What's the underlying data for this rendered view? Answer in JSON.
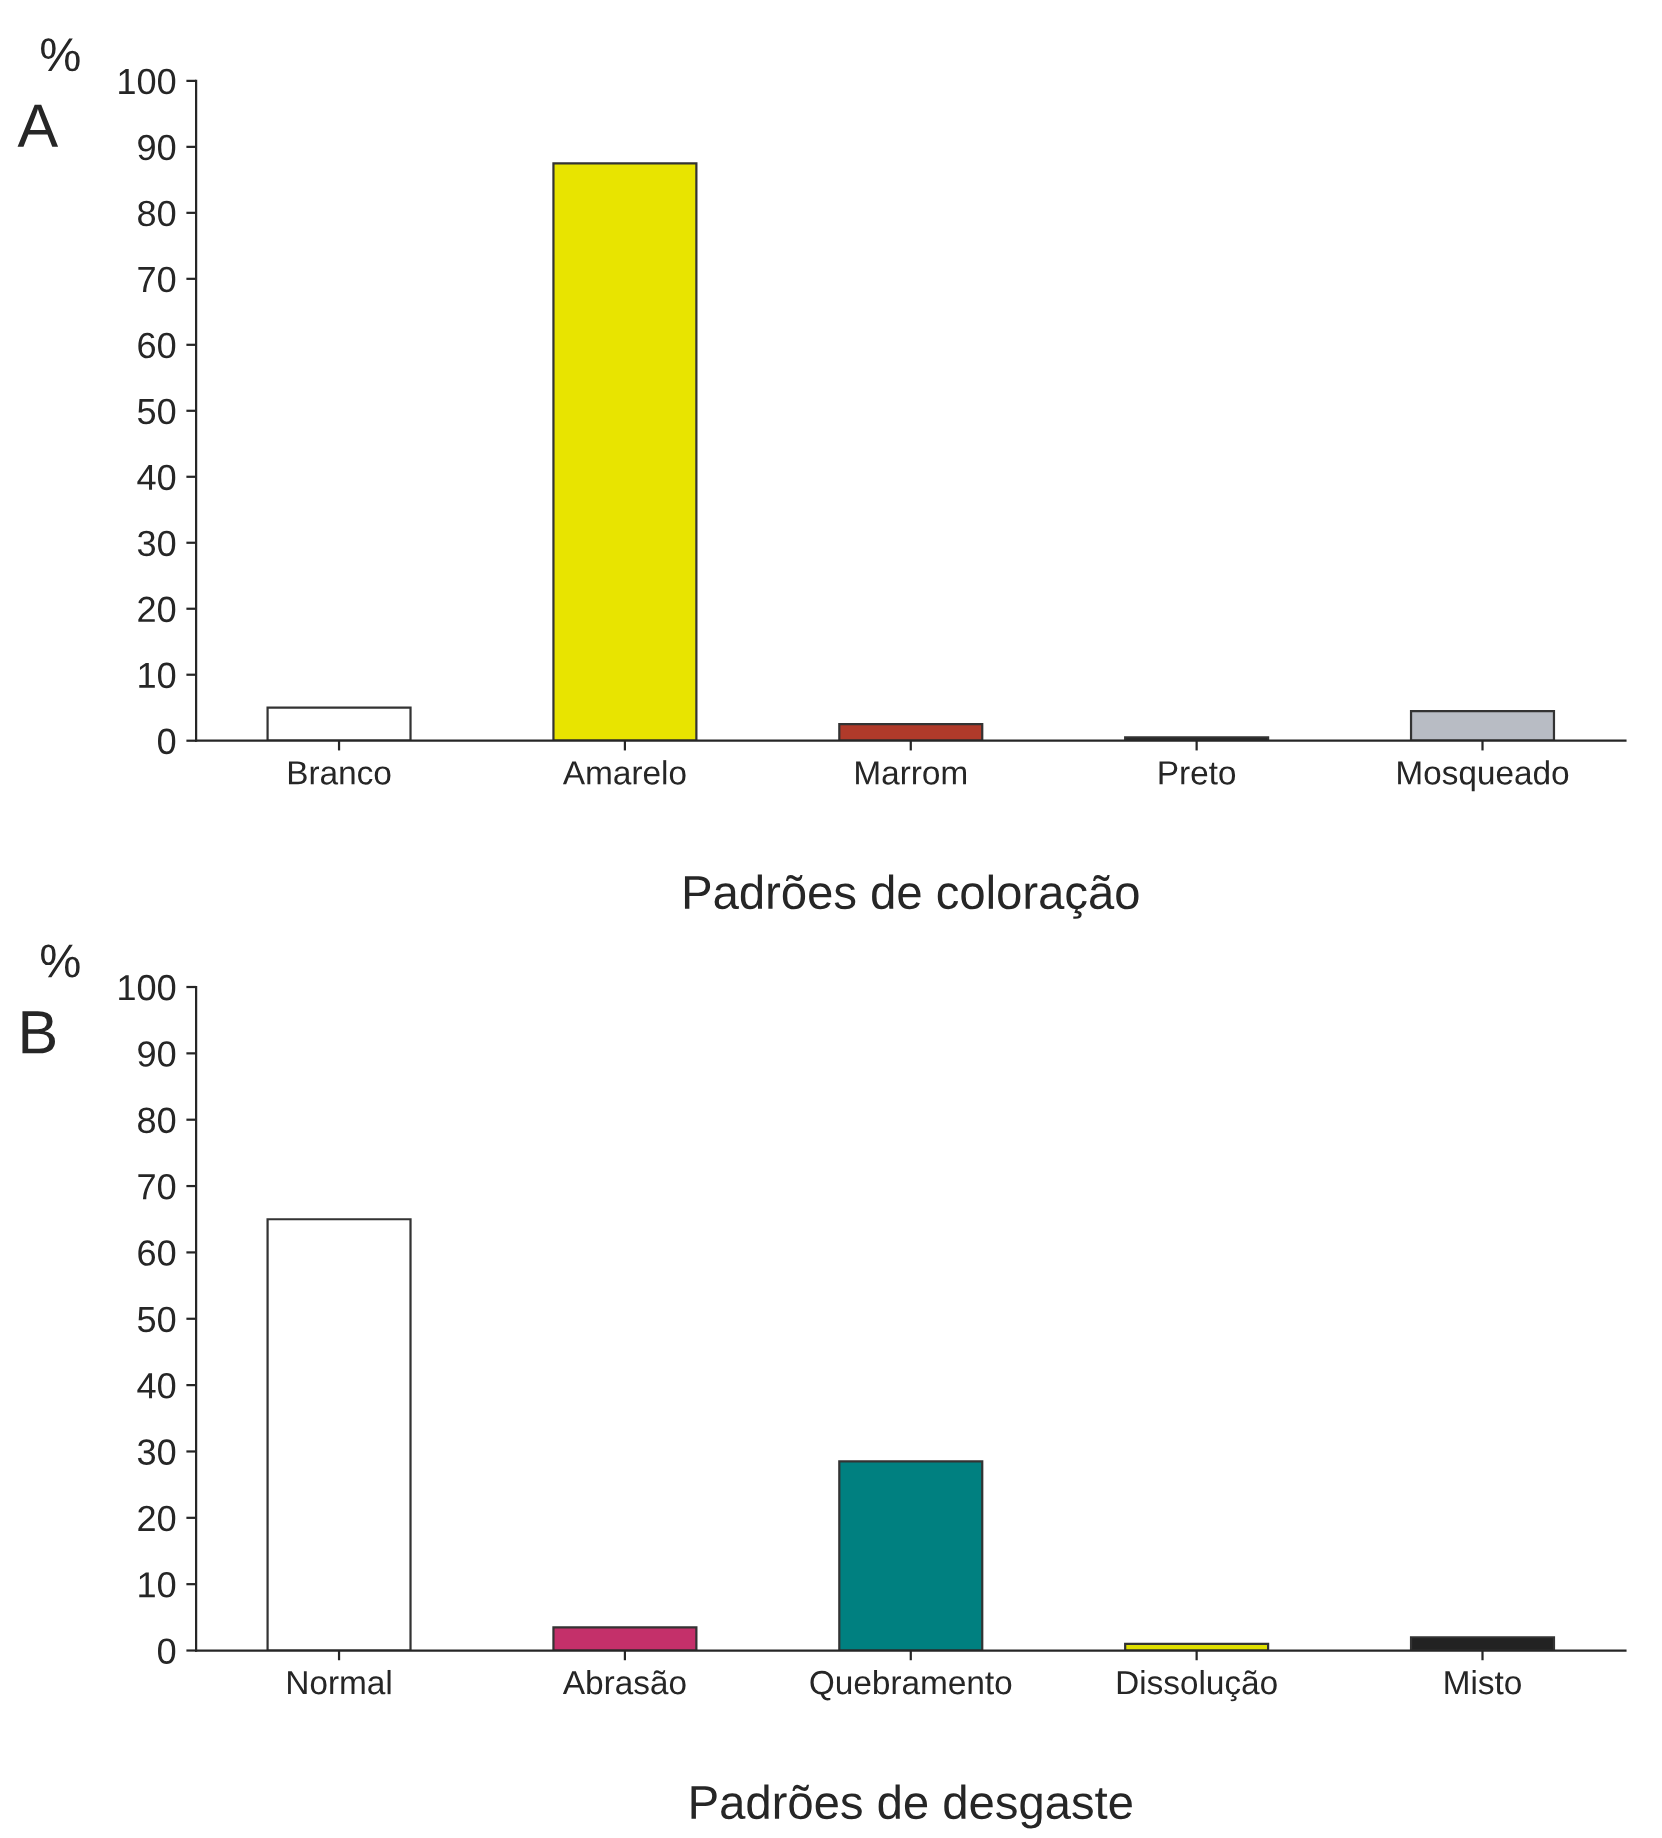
{
  "chart_data": [
    {
      "type": "bar",
      "xlabel": "Padrões de coloração",
      "ylabel": "%",
      "annotations": [
        "A"
      ],
      "categories": [
        "Branco",
        "Amarelo",
        "Marrom",
        "Preto",
        "Mosqueado"
      ],
      "values": [
        5,
        87.5,
        2.5,
        0.5,
        4.5
      ],
      "colors": [
        "#ffffff",
        "#e8e400",
        "#b03a2a",
        "#222222",
        "#b8bcc4"
      ],
      "ylim": [
        0,
        100
      ],
      "yticks": [
        0,
        10,
        20,
        30,
        40,
        50,
        60,
        70,
        80,
        90,
        100
      ],
      "grid": false,
      "legend": false
    },
    {
      "type": "bar",
      "xlabel": "Padrões de desgaste",
      "ylabel": "%",
      "annotations": [
        "B"
      ],
      "categories": [
        "Normal",
        "Abrasão",
        "Quebramento",
        "Dissolução",
        "Misto"
      ],
      "values": [
        65,
        3.5,
        28.5,
        1,
        2
      ],
      "colors": [
        "#ffffff",
        "#c4306a",
        "#008080",
        "#e0e000",
        "#222222"
      ],
      "ylim": [
        0,
        100
      ],
      "yticks": [
        0,
        10,
        20,
        30,
        40,
        50,
        60,
        70,
        80,
        90,
        100
      ],
      "grid": false,
      "legend": false
    }
  ]
}
